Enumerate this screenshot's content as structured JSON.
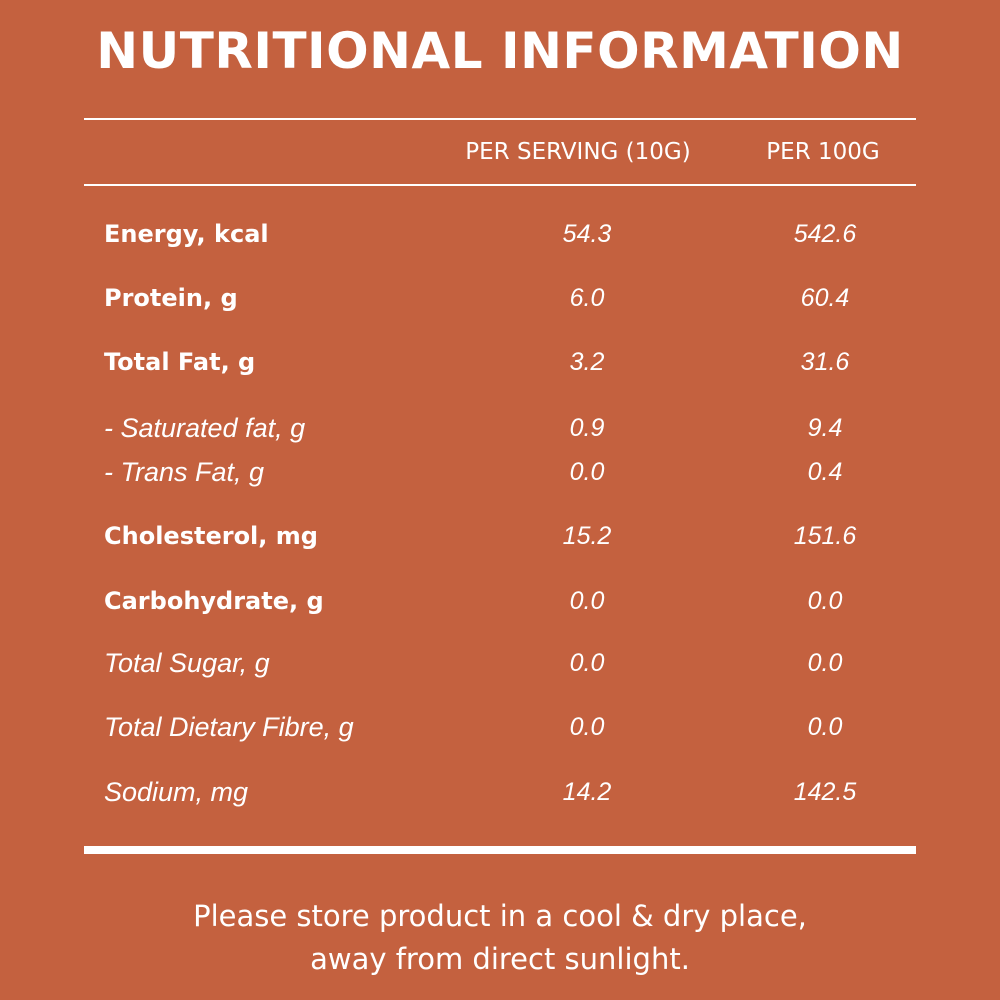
{
  "title": "NUTRITIONAL INFORMATION",
  "columns": {
    "per_serving": "PER SERVING (10G)",
    "per_100g": "PER 100G"
  },
  "rows": [
    {
      "label": "Energy, kcal",
      "per_serving": "54.3",
      "per_100g": "542.6",
      "style": "bold"
    },
    {
      "label": "Protein, g",
      "per_serving": "6.0",
      "per_100g": "60.4",
      "style": "bold"
    },
    {
      "label": "Total Fat, g",
      "per_serving": "3.2",
      "per_100g": "31.6",
      "style": "bold"
    },
    {
      "label": "- Saturated fat, g",
      "per_serving": "0.9",
      "per_100g": "9.4",
      "style": "italic"
    },
    {
      "label": "- Trans Fat, g",
      "per_serving": "0.0",
      "per_100g": "0.4",
      "style": "italic"
    },
    {
      "label": "Cholesterol, mg",
      "per_serving": "15.2",
      "per_100g": "151.6",
      "style": "bold"
    },
    {
      "label": "Carbohydrate, g",
      "per_serving": "0.0",
      "per_100g": "0.0",
      "style": "bold"
    },
    {
      "label": "Total Sugar, g",
      "per_serving": "0.0",
      "per_100g": "0.0",
      "style": "italic"
    },
    {
      "label": "Total Dietary Fibre, g",
      "per_serving": "0.0",
      "per_100g": "0.0",
      "style": "italic"
    },
    {
      "label": "Sodium, mg",
      "per_serving": "14.2",
      "per_100g": "142.5",
      "style": "italic"
    }
  ],
  "footer": {
    "line1": "Please store product in a cool & dry place,",
    "line2": "away from direct sunlight."
  },
  "colors": {
    "background": "#c4613f",
    "text": "#ffffff"
  }
}
